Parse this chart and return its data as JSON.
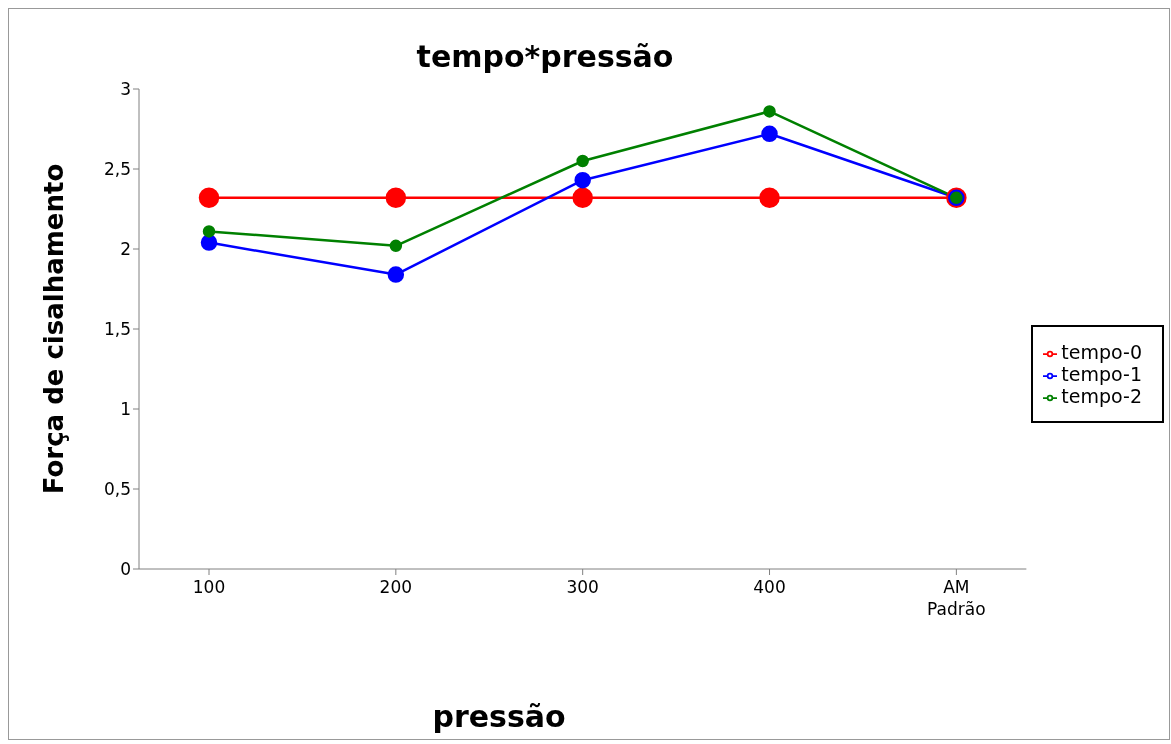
{
  "chart_data": {
    "type": "line",
    "title": "tempo*pressão",
    "xlabel": "pressão",
    "ylabel": "Força de cisalhamento",
    "categories": [
      "100",
      "200",
      "300",
      "400",
      "AM Padrão"
    ],
    "series": [
      {
        "name": "tempo-0",
        "color": "#ff0000",
        "values": [
          2.32,
          2.32,
          2.32,
          2.32,
          2.32
        ]
      },
      {
        "name": "tempo-1",
        "color": "#0000ff",
        "values": [
          2.04,
          1.84,
          2.43,
          2.72,
          2.32
        ]
      },
      {
        "name": "tempo-2",
        "color": "#008000",
        "values": [
          2.11,
          2.02,
          2.55,
          2.86,
          2.32
        ]
      }
    ],
    "ylim": [
      0,
      3
    ],
    "yticks": [
      0,
      {
        "value": 0.5,
        "label": "0,5"
      },
      1,
      {
        "value": 1.5,
        "label": "1,5"
      },
      2,
      {
        "value": 2.5,
        "label": "2,5"
      },
      3
    ],
    "grid": false,
    "legend": "right",
    "marker": "circle",
    "line_style": "solid"
  }
}
